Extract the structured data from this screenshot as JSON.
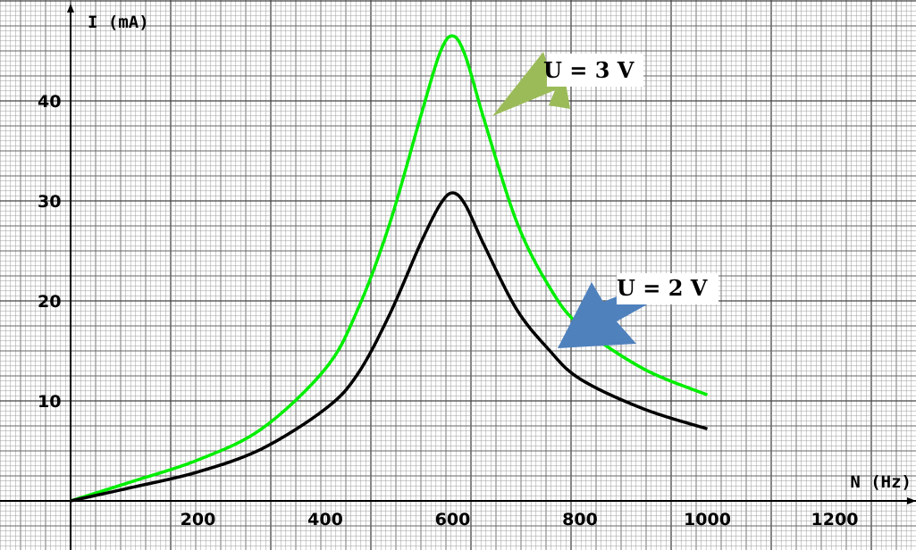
{
  "chart_data": {
    "type": "line",
    "xlabel": "N (Hz)",
    "ylabel": "I (mA)",
    "xlim": [
      0,
      1320
    ],
    "ylim": [
      -5,
      50
    ],
    "x_ticks": [
      "200",
      "400",
      "600",
      "800",
      "1000",
      "1200"
    ],
    "y_ticks": [
      "10",
      "20",
      "30",
      "40"
    ],
    "grid": true,
    "series": [
      {
        "name": "U = 3 V",
        "color": "#00ee00",
        "points": [
          [
            0,
            0
          ],
          [
            100,
            2
          ],
          [
            200,
            4.1
          ],
          [
            300,
            7.2
          ],
          [
            400,
            13.2
          ],
          [
            450,
            19
          ],
          [
            500,
            27.5
          ],
          [
            550,
            38.5
          ],
          [
            580,
            44.8
          ],
          [
            600,
            46.5
          ],
          [
            620,
            44.5
          ],
          [
            650,
            38
          ],
          [
            700,
            28
          ],
          [
            750,
            21.6
          ],
          [
            800,
            17.5
          ],
          [
            900,
            13.2
          ],
          [
            1000,
            10.6
          ]
        ]
      },
      {
        "name": "U = 2 V",
        "color": "#000000",
        "points": [
          [
            0,
            0
          ],
          [
            100,
            1.4
          ],
          [
            200,
            2.9
          ],
          [
            300,
            5.2
          ],
          [
            400,
            9.2
          ],
          [
            450,
            12.6
          ],
          [
            500,
            18.5
          ],
          [
            550,
            25.8
          ],
          [
            580,
            29.6
          ],
          [
            600,
            30.8
          ],
          [
            620,
            29.6
          ],
          [
            650,
            25.5
          ],
          [
            700,
            19.2
          ],
          [
            750,
            15.2
          ],
          [
            800,
            12.2
          ],
          [
            900,
            9.2
          ],
          [
            1000,
            7.2
          ]
        ]
      }
    ],
    "annotations": [
      {
        "text": "U = 3 V",
        "color": "#9bbb59"
      },
      {
        "text": "U = 2 V",
        "color": "#4f81bd"
      }
    ]
  }
}
